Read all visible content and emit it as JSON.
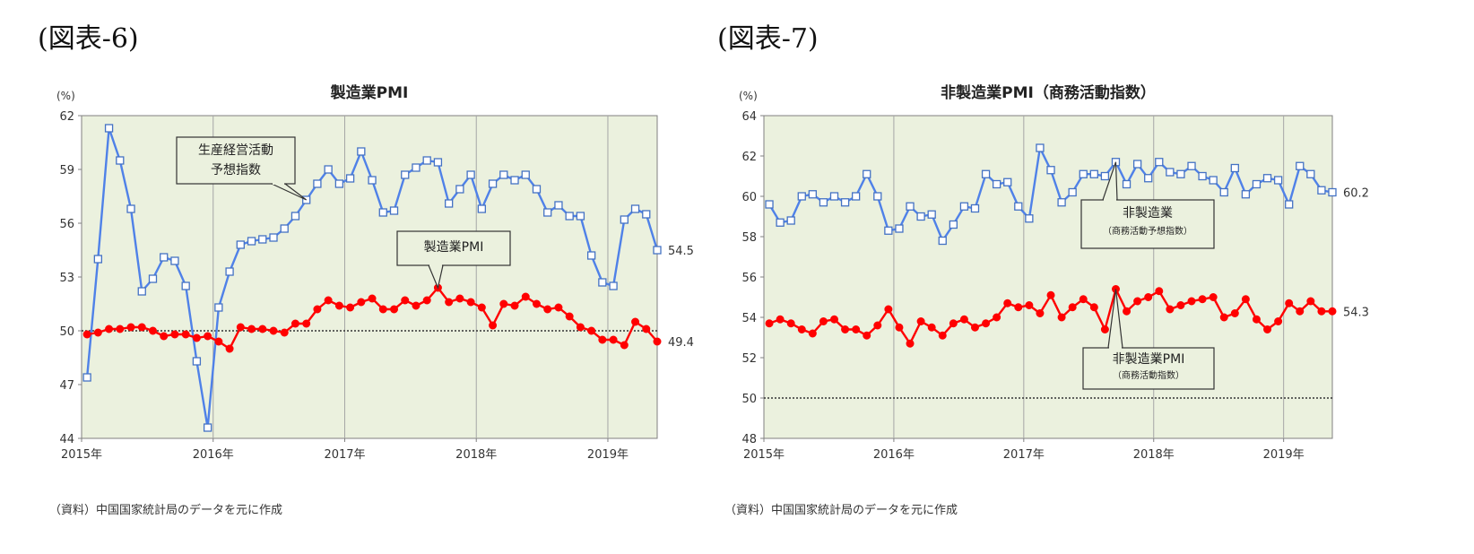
{
  "figure6": {
    "label": "(図表-6)",
    "source": "（資料）中国国家統計局のデータを元に作成",
    "chart": {
      "type": "line",
      "title": "製造業PMI",
      "ylabel": "(%)",
      "ylim": [
        44,
        62
      ],
      "yticks": [
        "44",
        "47",
        "50",
        "53",
        "56",
        "59",
        "62"
      ],
      "xticks": [
        "2015年",
        "2016年",
        "2017年",
        "2018年",
        "2019年"
      ],
      "reference_line": 50,
      "grid": true,
      "series": [
        {
          "name": "生産経営活動予想指数",
          "color": "#4472c4",
          "marker": "square",
          "end_label": "54.5",
          "values": [
            47.4,
            54.0,
            61.3,
            59.5,
            56.8,
            52.2,
            52.9,
            54.1,
            53.9,
            52.5,
            48.3,
            44.6,
            51.3,
            53.3,
            54.8,
            55.0,
            55.1,
            55.2,
            55.7,
            56.4,
            57.3,
            58.2,
            59.0,
            58.2,
            58.5,
            60.0,
            58.4,
            56.6,
            56.7,
            58.7,
            59.1,
            59.5,
            59.4,
            57.1,
            57.9,
            58.7,
            56.8,
            58.2,
            58.7,
            58.4,
            58.7,
            57.9,
            56.6,
            57.0,
            56.4,
            56.4,
            54.2,
            52.7,
            52.5,
            56.2,
            56.8,
            56.5,
            54.5
          ]
        },
        {
          "name": "製造業PMI",
          "color": "#ff0000",
          "marker": "circle",
          "end_label": "49.4",
          "values": [
            49.8,
            49.9,
            50.1,
            50.1,
            50.2,
            50.2,
            50.0,
            49.7,
            49.8,
            49.8,
            49.6,
            49.7,
            49.4,
            49.0,
            50.2,
            50.1,
            50.1,
            50.0,
            49.9,
            50.4,
            50.4,
            51.2,
            51.7,
            51.4,
            51.3,
            51.6,
            51.8,
            51.2,
            51.2,
            51.7,
            51.4,
            51.7,
            52.4,
            51.6,
            51.8,
            51.6,
            51.3,
            50.3,
            51.5,
            51.4,
            51.9,
            51.5,
            51.2,
            51.3,
            50.8,
            50.2,
            50.0,
            49.5,
            49.5,
            49.2,
            50.5,
            50.1,
            49.4
          ]
        }
      ],
      "callouts": [
        {
          "lines": [
            "生産経営活動",
            "予想指数"
          ]
        },
        {
          "lines": [
            "製造業PMI"
          ]
        }
      ]
    }
  },
  "figure7": {
    "label": "(図表-7)",
    "source": "（資料）中国国家統計局のデータを元に作成",
    "chart": {
      "type": "line",
      "title": "非製造業PMI（商務活動指数）",
      "ylabel": "(%)",
      "ylim": [
        48,
        64
      ],
      "yticks": [
        "48",
        "50",
        "52",
        "54",
        "56",
        "58",
        "60",
        "62",
        "64"
      ],
      "xticks": [
        "2015年",
        "2016年",
        "2017年",
        "2018年",
        "2019年"
      ],
      "reference_line": 50,
      "grid": true,
      "series": [
        {
          "name": "非製造業（商務活動予想指数）",
          "color": "#4472c4",
          "marker": "square",
          "end_label": "60.2",
          "values": [
            59.6,
            58.7,
            58.8,
            60.0,
            60.1,
            59.7,
            60.0,
            59.7,
            60.0,
            61.1,
            60.0,
            58.3,
            58.4,
            59.5,
            59.0,
            59.1,
            57.8,
            58.6,
            59.5,
            59.4,
            61.1,
            60.6,
            60.7,
            59.5,
            58.9,
            62.4,
            61.3,
            59.7,
            60.2,
            61.1,
            61.1,
            61.0,
            61.7,
            60.6,
            61.6,
            60.9,
            61.7,
            61.2,
            61.1,
            61.5,
            61.0,
            60.8,
            60.2,
            61.4,
            60.1,
            60.6,
            60.9,
            60.8,
            59.6,
            61.5,
            61.1,
            60.3,
            60.2
          ]
        },
        {
          "name": "非製造業PMI（商務活動指数）",
          "color": "#ff0000",
          "marker": "circle",
          "end_label": "54.3",
          "values": [
            53.7,
            53.9,
            53.7,
            53.4,
            53.2,
            53.8,
            53.9,
            53.4,
            53.4,
            53.1,
            53.6,
            54.4,
            53.5,
            52.7,
            53.8,
            53.5,
            53.1,
            53.7,
            53.9,
            53.5,
            53.7,
            54.0,
            54.7,
            54.5,
            54.6,
            54.2,
            55.1,
            54.0,
            54.5,
            54.9,
            54.5,
            53.4,
            55.4,
            54.3,
            54.8,
            55.0,
            55.3,
            54.4,
            54.6,
            54.8,
            54.9,
            55.0,
            54.0,
            54.2,
            54.9,
            53.9,
            53.4,
            53.8,
            54.7,
            54.3,
            54.8,
            54.3,
            54.3
          ]
        }
      ],
      "callouts": [
        {
          "lines": [
            "非製造業",
            "（商務活動予想指数）"
          ]
        },
        {
          "lines": [
            "非製造業PMI",
            "（商務活動指数）"
          ]
        }
      ]
    }
  }
}
